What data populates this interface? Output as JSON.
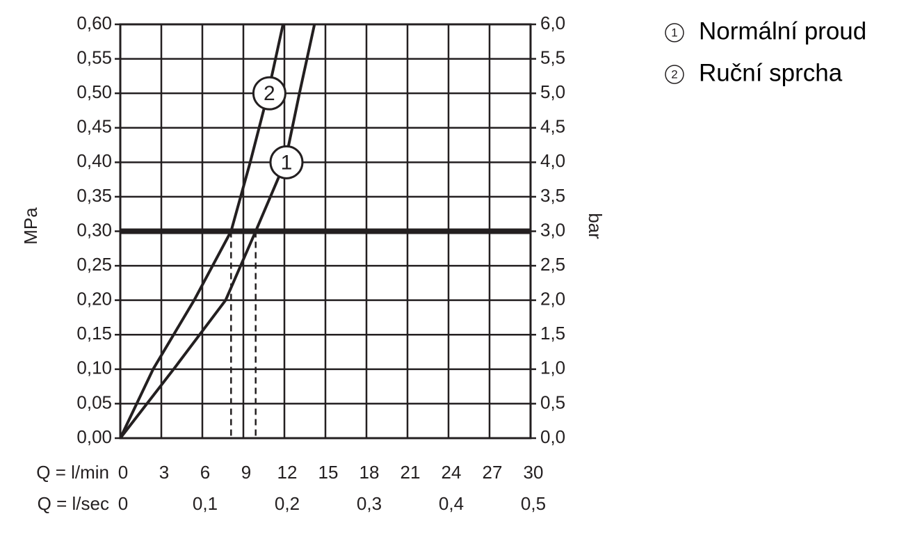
{
  "chart_data": {
    "type": "line",
    "xlabel": "Q = l/min",
    "x2label": "Q = l/sec",
    "ylabel": "MPa",
    "y2label": "bar",
    "xlim": [
      0,
      30
    ],
    "xticks": [
      0,
      3,
      6,
      9,
      12,
      15,
      18,
      21,
      24,
      27,
      30
    ],
    "x2lim": [
      0,
      0.5
    ],
    "x2ticks": [
      0,
      {
        "value": 0.1,
        "label": "0,1"
      },
      {
        "value": 0.2,
        "label": "0,2"
      },
      {
        "value": 0.3,
        "label": "0,3"
      },
      {
        "value": 0.4,
        "label": "0,4"
      },
      {
        "value": 0.5,
        "label": "0,5"
      }
    ],
    "ylim": [
      0,
      0.6
    ],
    "yticks": [
      {
        "value": 0,
        "label": "0,00"
      },
      {
        "value": 0.05,
        "label": "0,05"
      },
      {
        "value": 0.1,
        "label": "0,10"
      },
      {
        "value": 0.15,
        "label": "0,15"
      },
      {
        "value": 0.2,
        "label": "0,20"
      },
      {
        "value": 0.25,
        "label": "0,25"
      },
      {
        "value": 0.3,
        "label": "0,30"
      },
      {
        "value": 0.35,
        "label": "0,35"
      },
      {
        "value": 0.4,
        "label": "0,40"
      },
      {
        "value": 0.45,
        "label": "0,45"
      },
      {
        "value": 0.5,
        "label": "0,50"
      },
      {
        "value": 0.55,
        "label": "0,55"
      },
      {
        "value": 0.6,
        "label": "0,60"
      }
    ],
    "y2lim": [
      0,
      6
    ],
    "y2ticks": [
      {
        "value": 0,
        "label": "0,0"
      },
      {
        "value": 0.5,
        "label": "0,5"
      },
      {
        "value": 1,
        "label": "1,0"
      },
      {
        "value": 1.5,
        "label": "1,5"
      },
      {
        "value": 2,
        "label": "2,0"
      },
      {
        "value": 2.5,
        "label": "2,5"
      },
      {
        "value": 3,
        "label": "3,0"
      },
      {
        "value": 3.5,
        "label": "3,5"
      },
      {
        "value": 4,
        "label": "4,0"
      },
      {
        "value": 4.5,
        "label": "4,5"
      },
      {
        "value": 5,
        "label": "5,0"
      },
      {
        "value": 5.5,
        "label": "5,5"
      },
      {
        "value": 6,
        "label": "6,0"
      }
    ],
    "grid": true,
    "hline": 0.3,
    "legend": "right",
    "series": [
      {
        "name": "Normální proud",
        "label": "1",
        "color": "#231f20",
        "x": [
          0,
          3.9,
          7.7,
          9.9,
          12.05,
          13.1,
          14.2
        ],
        "values": [
          0,
          0.1,
          0.2,
          0.3,
          0.4,
          0.5,
          0.6
        ]
      },
      {
        "name": "Ruční sprcha",
        "label": "2",
        "color": "#231f20",
        "x": [
          0,
          2.4,
          5.4,
          8.1,
          9.5,
          10.8,
          11.9
        ],
        "values": [
          0,
          0.1,
          0.2,
          0.3,
          0.4,
          0.5,
          0.6
        ]
      }
    ]
  }
}
